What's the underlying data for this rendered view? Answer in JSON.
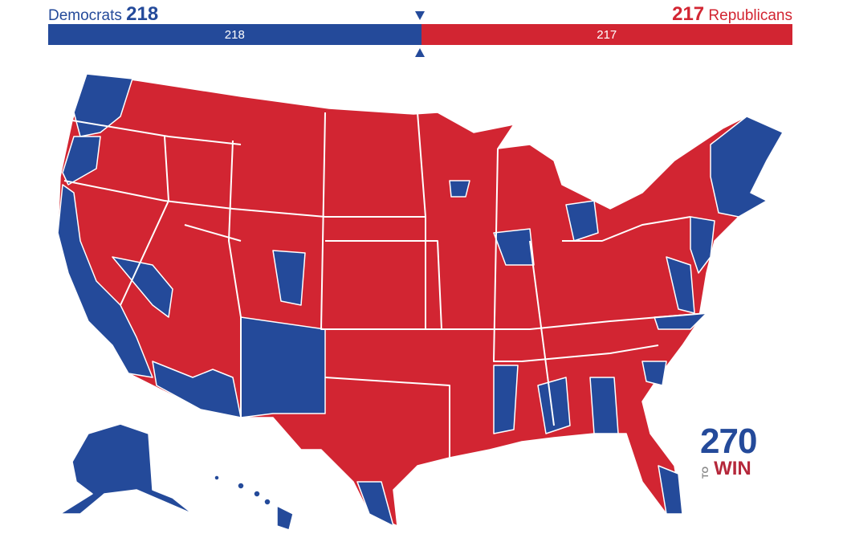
{
  "header": {
    "dem_label": "Democrats",
    "dem_count": "218",
    "rep_count": "217",
    "rep_label": "Republicans"
  },
  "bar": {
    "dem_value": "218",
    "rep_value": "217",
    "dem_seats": 218,
    "rep_seats": 217,
    "majority_marker": "center-triangles"
  },
  "colors": {
    "democrat": "#244a9a",
    "republican": "#d22532",
    "border": "#ffffff"
  },
  "map": {
    "type": "US House districts",
    "regions": [
      "lower-48",
      "alaska",
      "hawaii"
    ]
  },
  "logo": {
    "number": "270",
    "to": "TO",
    "win": "WIN"
  }
}
